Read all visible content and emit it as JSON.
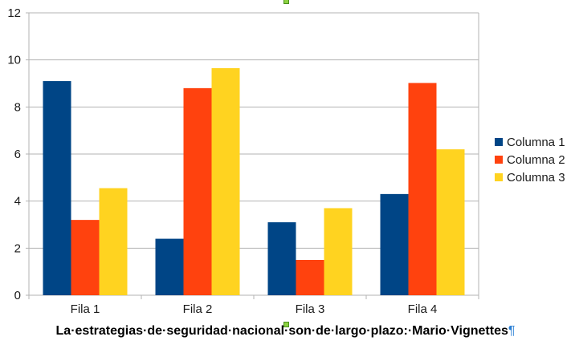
{
  "chart_data": {
    "type": "bar",
    "categories": [
      "Fila 1",
      "Fila 2",
      "Fila 3",
      "Fila 4"
    ],
    "series": [
      {
        "name": "Columna 1",
        "color": "#004586",
        "values": [
          9.1,
          2.4,
          3.1,
          4.3
        ]
      },
      {
        "name": "Columna 2",
        "color": "#ff420e",
        "values": [
          3.2,
          8.8,
          1.5,
          9.02
        ]
      },
      {
        "name": "Columna 3",
        "color": "#ffd320",
        "values": [
          4.55,
          9.65,
          3.7,
          6.2
        ]
      }
    ],
    "ylim": [
      0,
      12
    ],
    "yticks": [
      0,
      2,
      4,
      6,
      8,
      10,
      12
    ],
    "title": "",
    "xlabel": "",
    "ylabel": "",
    "grid": true,
    "legend_position": "right"
  },
  "caption": {
    "text": "La·estrategias·de·seguridad·nacional·son·de·largo·plazo:·Mario·Vignettes",
    "pilcrow": "¶"
  }
}
